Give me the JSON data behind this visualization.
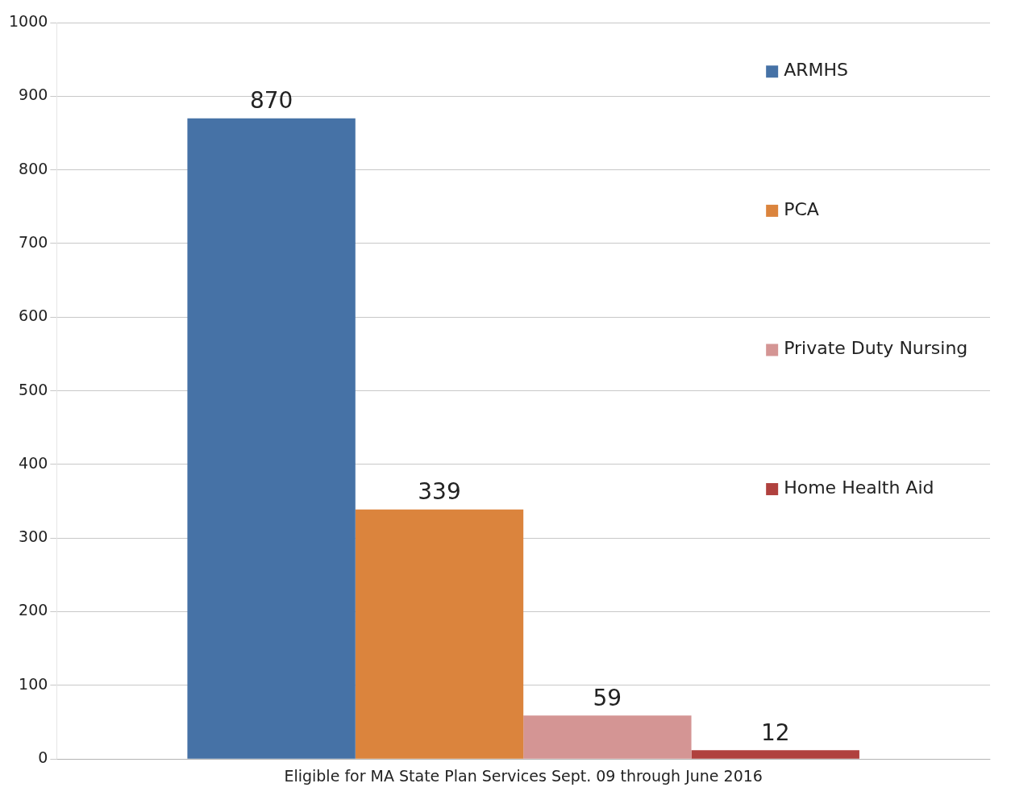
{
  "chart_data": {
    "type": "bar",
    "categories": [
      "Eligible for MA State Plan Services Sept. 09 through June 2016"
    ],
    "series": [
      {
        "name": "ARMHS",
        "color": "#4672a6",
        "values": [
          870
        ]
      },
      {
        "name": "PCA",
        "color": "#db843d",
        "values": [
          339
        ]
      },
      {
        "name": "Private Duty Nursing",
        "color": "#d49594",
        "values": [
          59
        ]
      },
      {
        "name": "Home Health Aid",
        "color": "#b0413e",
        "values": [
          12
        ]
      }
    ],
    "ylim": [
      0,
      1000
    ],
    "yticks": [
      0,
      100,
      200,
      300,
      400,
      500,
      600,
      700,
      800,
      900,
      1000
    ],
    "grid": "y",
    "legend": "top right",
    "data_labels": true
  }
}
